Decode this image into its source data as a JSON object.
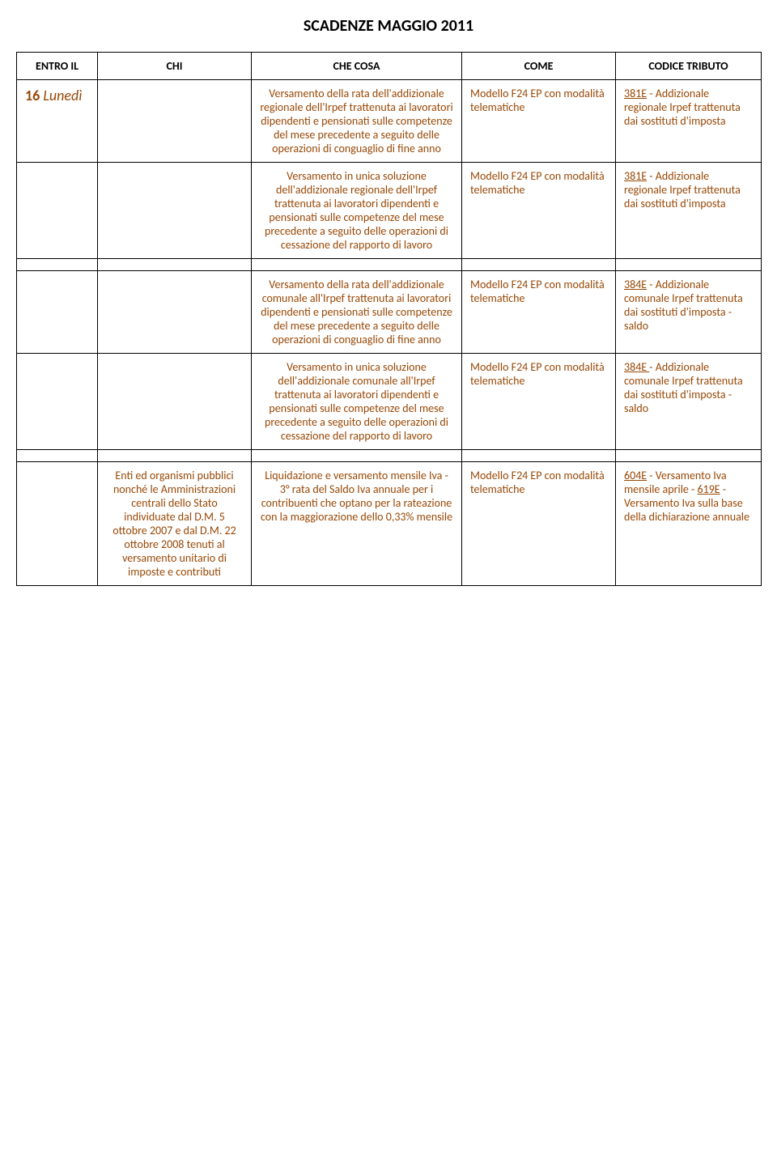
{
  "title": "SCADENZE MAGGIO 2011",
  "headers": {
    "c1": "ENTRO IL",
    "c2": "CHI",
    "c3": "CHE COSA",
    "c4": "COME",
    "c5": "CODICE TRIBUTO"
  },
  "rows": [
    {
      "date_num": "16",
      "date_word": "Lunedì",
      "chi": "",
      "cosa": "Versamento della rata dell'addizionale regionale dell'Irpef trattenuta ai lavoratori dipendenti e pensionati sulle competenze del mese precedente a seguito delle operazioni di conguaglio di fine anno",
      "come": "Modello F24 EP con modalità telematiche",
      "cod_u": "381E",
      "cod_rest": " - Addizionale regionale Irpef trattenuta dai sostituti d'imposta"
    },
    {
      "date_num": "",
      "date_word": "",
      "chi": "",
      "cosa": "Versamento in unica soluzione dell'addizionale regionale dell'Irpef trattenuta ai lavoratori dipendenti e pensionati sulle competenze del mese precedente a seguito delle operazioni di cessazione del rapporto di lavoro",
      "come": "Modello F24 EP con modalità telematiche",
      "cod_u": "381E",
      "cod_rest": " - Addizionale regionale Irpef trattenuta dai sostituti d'imposta"
    },
    {
      "date_num": "",
      "date_word": "",
      "chi": "",
      "cosa": "Versamento della rata dell'addizionale comunale all'Irpef trattenuta ai lavoratori dipendenti e pensionati sulle competenze del mese precedente a seguito delle operazioni di conguaglio di fine anno",
      "come": "Modello F24 EP con modalità telematiche",
      "cod_u": "384E",
      "cod_rest": " - Addizionale comunale Irpef trattenuta dai sostituti d'imposta - saldo"
    },
    {
      "date_num": "",
      "date_word": "",
      "chi": "",
      "cosa": "Versamento in unica soluzione dell'addizionale comunale all'Irpef trattenuta ai lavoratori dipendenti e pensionati sulle competenze del mese precedente a seguito delle operazioni di cessazione del rapporto di lavoro",
      "come": "Modello F24 EP con modalità telematiche",
      "cod_u": "384E ",
      "cod_rest": "- Addizionale comunale Irpef trattenuta dai sostituti d'imposta - saldo"
    },
    {
      "date_num": "",
      "date_word": "",
      "chi": "Enti ed organismi pubblici nonché le Amministrazioni centrali dello Stato individuate dal D.M. 5 ottobre 2007 e dal D.M. 22 ottobre 2008 tenuti al versamento unitario di imposte e contributi",
      "cosa": "Liquidazione e versamento mensile Iva - 3° rata del Saldo Iva annuale per i contribuenti che optano per la rateazione con la maggiorazione dello 0,33% mensile",
      "come": "Modello F24 EP con modalità telematiche",
      "cod_u": "604E",
      "cod_mid": " - Versamento Iva mensile aprile - ",
      "cod_u2": "619E",
      "cod_rest": " - Versamento Iva sulla base della dichiarazione annuale"
    }
  ]
}
